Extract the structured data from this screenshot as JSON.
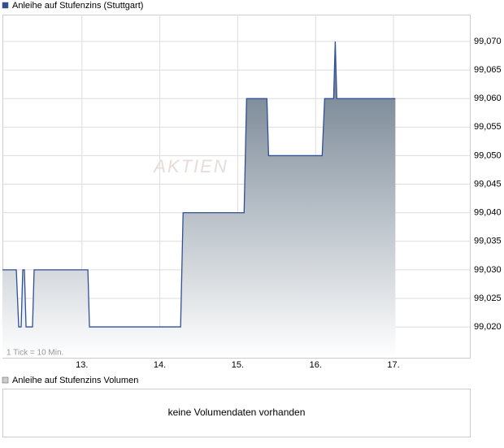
{
  "chart_data": {
    "type": "line",
    "title": "Anleihe auf Stufenzins (Stuttgart)",
    "annotation": "1 Tick = 10 Min.",
    "watermark": "AKTIEN",
    "x": [
      11.98,
      12.158,
      12.189,
      12.22,
      12.241,
      12.262,
      12.283,
      12.366,
      12.387,
      13.077,
      13.097,
      14.267,
      14.299,
      15.082,
      15.114,
      15.375,
      15.396,
      16.084,
      16.116,
      16.231,
      16.252,
      16.272,
      17.024
    ],
    "series": [
      {
        "name": "Anleihe auf Stufenzins (Stuttgart)",
        "color": "#2f4f9a",
        "values": [
          99.03,
          99.03,
          99.02,
          99.02,
          99.03,
          99.03,
          99.02,
          99.02,
          99.03,
          99.03,
          99.02,
          99.02,
          99.04,
          99.04,
          99.06,
          99.06,
          99.05,
          99.05,
          99.06,
          99.06,
          99.07,
          99.06,
          99.06
        ]
      }
    ],
    "xlim": [
      11.98,
      17.98
    ],
    "xticks": [
      {
        "value": 13,
        "label": "13."
      },
      {
        "value": 14,
        "label": "14."
      },
      {
        "value": 15,
        "label": "15."
      },
      {
        "value": 16,
        "label": "16."
      },
      {
        "value": 17,
        "label": "17."
      }
    ],
    "ylim": [
      99.0146,
      99.0747
    ],
    "yticks": [
      {
        "value": 99.02,
        "label": "99,020"
      },
      {
        "value": 99.025,
        "label": "99,025"
      },
      {
        "value": 99.03,
        "label": "99,030"
      },
      {
        "value": 99.035,
        "label": "99,035"
      },
      {
        "value": 99.04,
        "label": "99,040"
      },
      {
        "value": 99.045,
        "label": "99,045"
      },
      {
        "value": 99.05,
        "label": "99,050"
      },
      {
        "value": 99.055,
        "label": "99,055"
      },
      {
        "value": 99.06,
        "label": "99,060"
      },
      {
        "value": 99.065,
        "label": "99,065"
      },
      {
        "value": 99.07,
        "label": "99,070"
      }
    ],
    "grid": true
  },
  "volume_panel": {
    "title": "Anleihe auf Stufenzins Volumen",
    "message": "keine Volumendaten vorhanden"
  }
}
